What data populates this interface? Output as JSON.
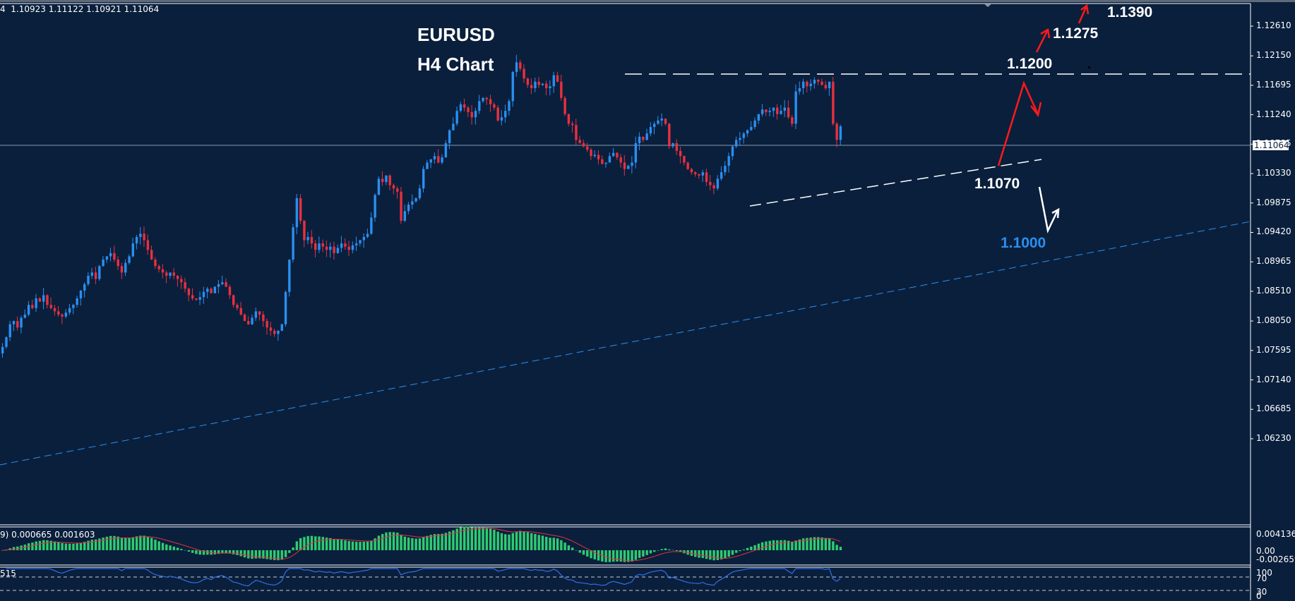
{
  "header": {
    "ohlc_text": "4  1.10923 1.11122 1.10921 1.11064"
  },
  "title": {
    "line1": "EURUSD",
    "line2": "H4 Chart"
  },
  "annotations": {
    "level_1390": "1.1390",
    "level_1275": "1.1275",
    "level_1200": "1.1200",
    "level_1070": "1.1070",
    "level_1000": "1.1000"
  },
  "colors": {
    "background": "#0a1f3c",
    "bull_candle": "#2a8ff0",
    "bear_candle": "#e8303f",
    "macd_hist": "#2ecc71",
    "macd_signal": "#e8303f",
    "rsi_line": "#2f6fe8",
    "trendline_blue": "#2a8ff0",
    "annotation_blue": "#2a8ff0",
    "arrow_red": "#ff1a1a",
    "text": "#ffffff"
  },
  "price_axis": {
    "ticks": [
      "1.12610",
      "1.12150",
      "1.11695",
      "1.11240",
      "1.10785",
      "1.10330",
      "1.09875",
      "1.09420",
      "1.08965",
      "1.08510",
      "1.08050",
      "1.07595",
      "1.07140",
      "1.06685",
      "1.06230"
    ],
    "current_price": "1.11064"
  },
  "macd": {
    "label": "9) 0.000665 0.001603",
    "ticks": [
      "0.004136",
      "0.00",
      "-0.002659"
    ]
  },
  "rsi": {
    "label": "515",
    "ticks": [
      "100",
      "70",
      "30",
      "0"
    ]
  },
  "chart_data": {
    "type": "candlestick",
    "title": "EURUSD H4 Chart",
    "symbol": "EURUSD",
    "timeframe": "H4",
    "ylim": [
      1.06,
      1.131
    ],
    "last_ohlc": {
      "open": 1.10923,
      "high": 1.11122,
      "low": 1.10921,
      "close": 1.11064
    },
    "closes": [
      1.0765,
      1.078,
      1.08,
      1.0805,
      1.0795,
      1.081,
      1.0815,
      1.083,
      1.0825,
      1.084,
      1.0835,
      1.0845,
      1.083,
      1.0825,
      1.082,
      1.0815,
      1.0812,
      1.0818,
      1.0825,
      1.083,
      1.084,
      1.0852,
      1.0862,
      1.0875,
      1.088,
      1.087,
      1.089,
      1.09,
      1.0905,
      1.091,
      1.09,
      1.089,
      1.088,
      1.0895,
      1.0905,
      1.0925,
      1.0935,
      1.094,
      1.093,
      1.0915,
      1.09,
      1.089,
      1.0885,
      1.088,
      1.0875,
      1.088,
      1.0875,
      1.087,
      1.0865,
      1.0855,
      1.0845,
      1.084,
      1.0838,
      1.0842,
      1.085,
      1.0855,
      1.0848,
      1.0858,
      1.0862,
      1.0865,
      1.0858,
      1.0845,
      1.083,
      1.0825,
      1.0815,
      1.0805,
      1.08,
      1.081,
      1.082,
      1.0815,
      1.0805,
      1.0795,
      1.079,
      1.0785,
      1.079,
      1.08,
      1.085,
      1.09,
      1.095,
      1.0995,
      1.096,
      1.093,
      1.0935,
      1.0925,
      1.0915,
      1.0925,
      1.092,
      1.0915,
      1.092,
      1.091,
      1.0918,
      1.0925,
      1.092,
      1.0915,
      1.0922,
      1.0925,
      1.093,
      1.0935,
      1.094,
      1.0965,
      1.1,
      1.1025,
      1.102,
      1.103,
      1.1015,
      1.101,
      1.1005,
      1.096,
      1.0975,
      1.0985,
      1.099,
      1.0995,
      1.101,
      1.104,
      1.105,
      1.1055,
      1.106,
      1.105,
      1.1058,
      1.108,
      1.11,
      1.111,
      1.113,
      1.114,
      1.1135,
      1.1128,
      1.112,
      1.113,
      1.1145,
      1.115,
      1.1148,
      1.114,
      1.1135,
      1.1115,
      1.112,
      1.113,
      1.1145,
      1.119,
      1.1205,
      1.1195,
      1.118,
      1.117,
      1.1165,
      1.1175,
      1.117,
      1.1172,
      1.1165,
      1.1168,
      1.1185,
      1.1175,
      1.115,
      1.1125,
      1.111,
      1.1108,
      1.1085,
      1.108,
      1.1075,
      1.107,
      1.106,
      1.1062,
      1.1055,
      1.1048,
      1.105,
      1.106,
      1.1065,
      1.1058,
      1.105,
      1.104,
      1.1045,
      1.105,
      1.108,
      1.109,
      1.1085,
      1.1095,
      1.1105,
      1.111,
      1.1115,
      1.1118,
      1.111,
      1.1075,
      1.108,
      1.1068,
      1.106,
      1.105,
      1.104,
      1.1035,
      1.1032,
      1.103,
      1.1035,
      1.102,
      1.1015,
      1.101,
      1.1025,
      1.1035,
      1.1045,
      1.106,
      1.1075,
      1.1085,
      1.1088,
      1.1095,
      1.11,
      1.1105,
      1.1115,
      1.1125,
      1.1132,
      1.1128,
      1.113,
      1.1135,
      1.1125,
      1.113,
      1.1135,
      1.112,
      1.111,
      1.116,
      1.1165,
      1.1175,
      1.1168,
      1.1172,
      1.1178,
      1.1175,
      1.117,
      1.1165,
      1.1175,
      1.111,
      1.1085,
      1.1106
    ]
  }
}
